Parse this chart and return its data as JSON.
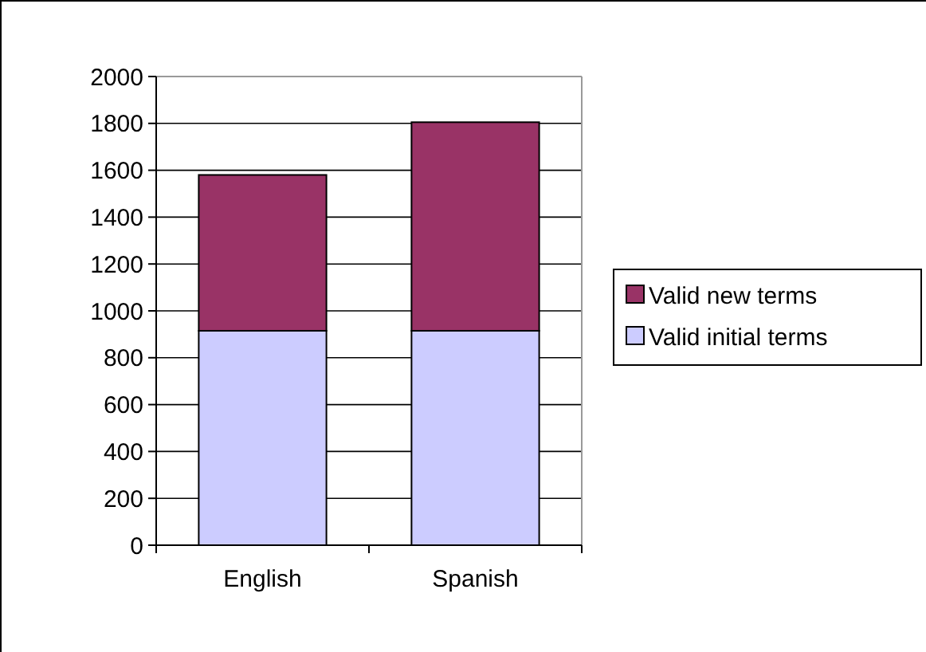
{
  "chart_data": {
    "type": "bar",
    "stacked": true,
    "categories": [
      "English",
      "Spanish"
    ],
    "series": [
      {
        "name": "Valid initial terms",
        "color": "#ccccff",
        "values": [
          915,
          915
        ]
      },
      {
        "name": "Valid new terms",
        "color": "#993366",
        "values": [
          665,
          890
        ]
      }
    ],
    "ylim": [
      0,
      2000
    ],
    "yticks": [
      0,
      200,
      400,
      600,
      800,
      1000,
      1200,
      1400,
      1600,
      1800,
      2000
    ],
    "grid": "y",
    "legend": "right"
  }
}
